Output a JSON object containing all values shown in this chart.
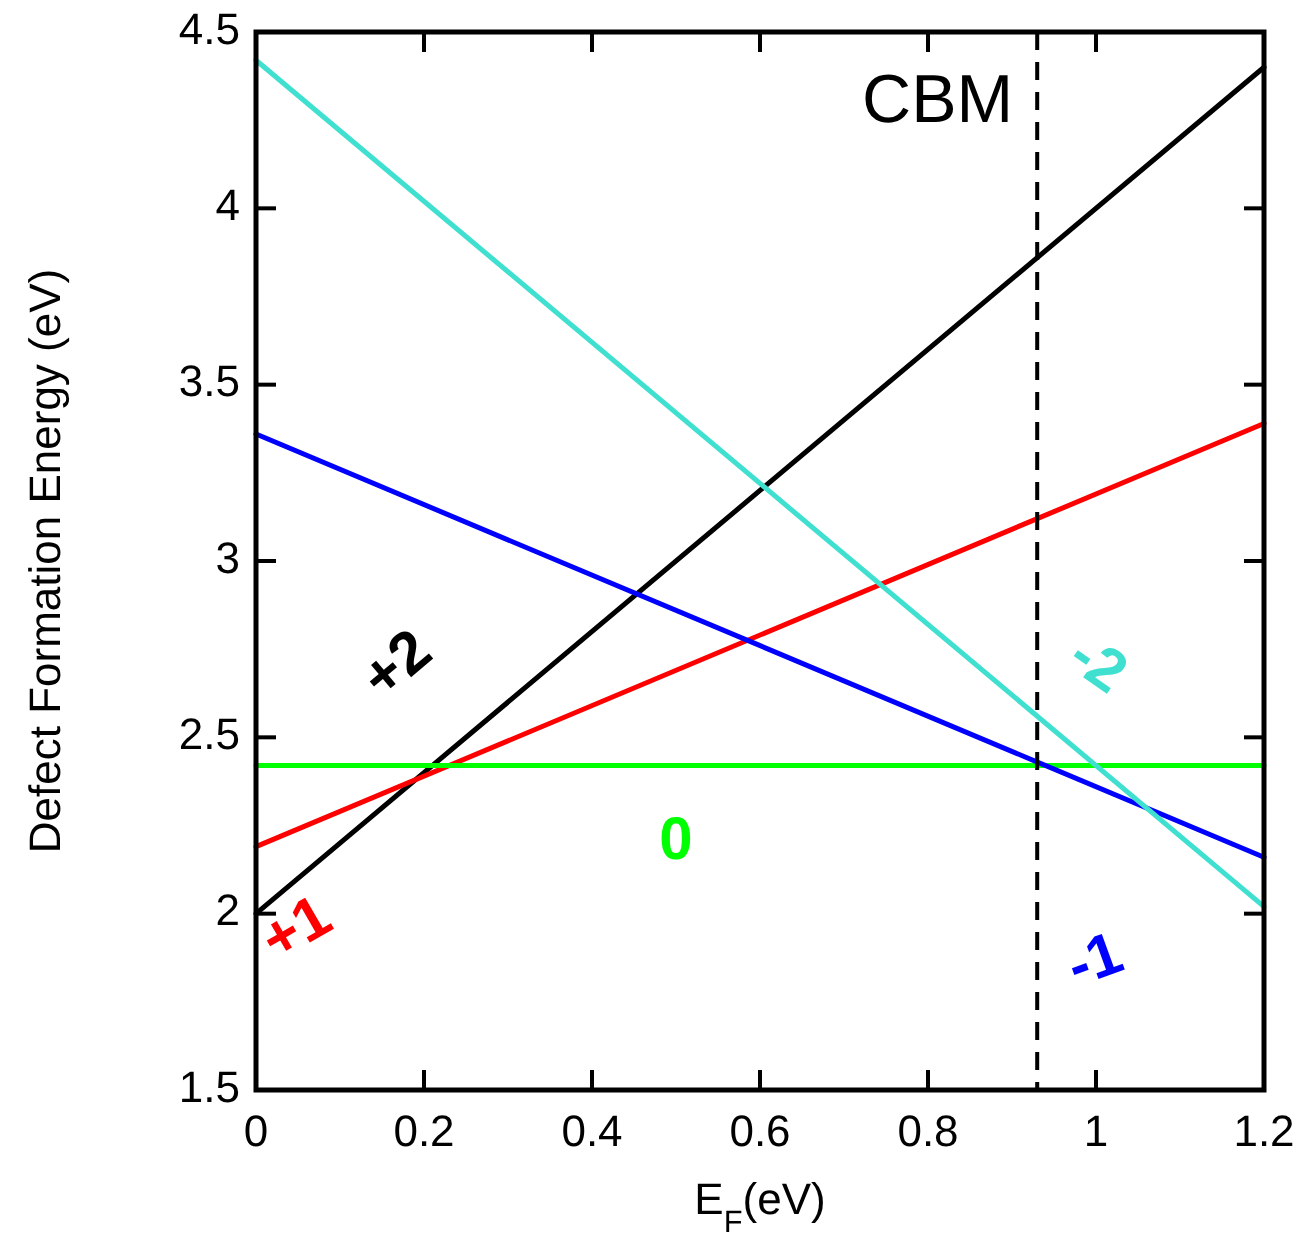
{
  "chart_data": {
    "type": "line",
    "xlabel": "E$_{F}$(eV)",
    "ylabel": "Defect Formation Energy (eV)",
    "x": [
      0,
      1.2
    ],
    "series": [
      {
        "name": "+2",
        "color": "#000000",
        "values": [
          2.0,
          4.4
        ]
      },
      {
        "name": "+1",
        "color": "#ff0000",
        "values": [
          2.19,
          3.39
        ]
      },
      {
        "name": "0",
        "color": "#00ff00",
        "values": [
          2.42,
          2.42
        ]
      },
      {
        "name": "-1",
        "color": "#0000ff",
        "values": [
          3.36,
          2.16
        ]
      },
      {
        "name": "-2",
        "color": "#40e0d0",
        "values": [
          4.42,
          2.02
        ]
      }
    ],
    "xlim": [
      0,
      1.2
    ],
    "xticks": [
      0,
      0.2,
      0.4,
      0.6,
      0.8,
      1,
      1.2
    ],
    "ylim": [
      1.5,
      4.5
    ],
    "yticks": [
      1.5,
      2,
      2.5,
      3,
      3.5,
      4,
      4.5
    ],
    "ref_lines": [
      {
        "axis": "x",
        "value": 0.93,
        "label": "CBM",
        "color": "#000000",
        "line_style": "dashed"
      }
    ],
    "grid": false,
    "legend": false,
    "marker": "none",
    "line_style": "solid"
  }
}
